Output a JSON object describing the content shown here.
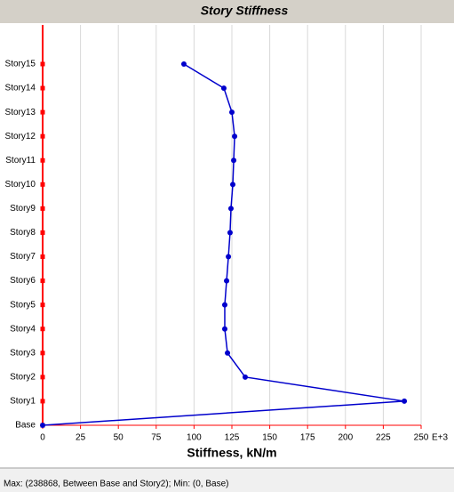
{
  "chart_data": {
    "type": "line",
    "title": "Story Stiffness",
    "x_axis_label": "Stiffness, kN/m",
    "x_axis_multiplier": "E+3",
    "categories": [
      "Base",
      "Story1",
      "Story2",
      "Story3",
      "Story4",
      "Story5",
      "Story6",
      "Story7",
      "Story8",
      "Story9",
      "Story10",
      "Story11",
      "Story12",
      "Story13",
      "Story14",
      "Story15"
    ],
    "series": [
      {
        "color": "#0000cc",
        "values": [
          0,
          238.9,
          133.8,
          122.1,
          120.3,
          120.3,
          121.5,
          122.7,
          123.8,
          124.4,
          125.6,
          126.2,
          126.8,
          125,
          119.7,
          93.3
        ]
      }
    ],
    "xlim": [
      0,
      250
    ],
    "xticks": [
      0,
      25,
      50,
      75,
      100,
      125,
      150,
      175,
      200,
      225,
      250
    ],
    "grid": true,
    "axis_color": "#ff0000"
  },
  "status_text": "Max: (238868, Between Base and Story2);  Min: (0, Base)"
}
